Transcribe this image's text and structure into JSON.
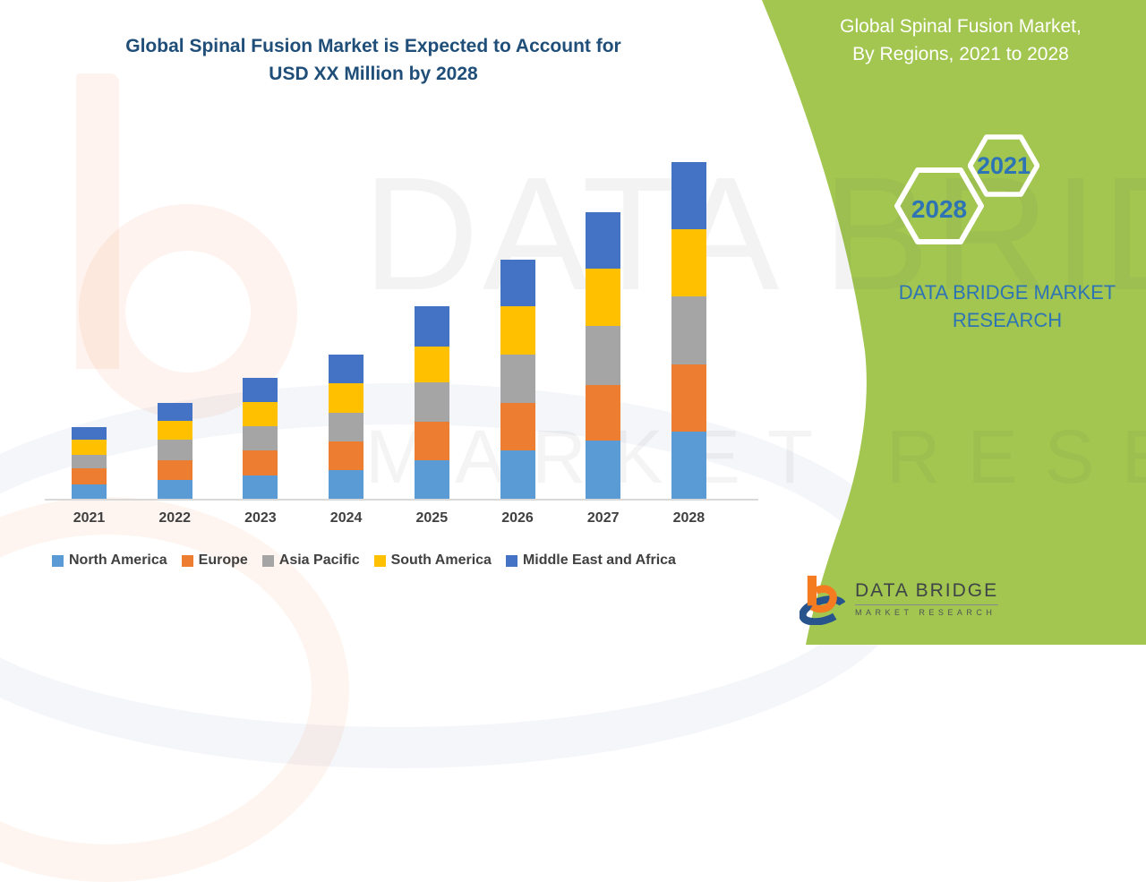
{
  "title": {
    "line1": "Global Spinal Fusion Market is Expected to Account for",
    "line2": "USD XX Million by 2028",
    "color": "#1F4E79"
  },
  "panel": {
    "bg_color": "#A2C64F",
    "heading_line1": "Global Spinal Fusion Market,",
    "heading_line2": "By Regions, 2021 to 2028",
    "heading_color": "#FFFFFF",
    "hexagon_large_label": "2028",
    "hexagon_small_label": "2021",
    "hexagon_text_color": "#2E74B5",
    "brand_line1": "DATA BRIDGE MARKET",
    "brand_line2": "RESEARCH",
    "brand_color": "#2E74B5"
  },
  "watermark": {
    "line1": "DATA BRIDGE",
    "line2": "MARKET RESEARCH"
  },
  "logo": {
    "name": "DATA BRIDGE",
    "tagline": "MARKET RESEARCH",
    "orange": "#F47B20",
    "blue": "#27548D"
  },
  "chart_data": {
    "type": "bar",
    "stacked": true,
    "title": "Global Spinal Fusion Market is Expected to Account for USD XX Million by 2028",
    "xlabel": "",
    "ylabel": "",
    "y_axis_visible": false,
    "grid": false,
    "legend_position": "bottom",
    "categories": [
      "2021",
      "2022",
      "2023",
      "2024",
      "2025",
      "2026",
      "2027",
      "2028"
    ],
    "values_unit": "relative height (value axis not labeled, values shown as USD XX Million)",
    "series": [
      {
        "name": "North America",
        "color": "#5B9BD5",
        "values": [
          16,
          21,
          26,
          32,
          43,
          54,
          65,
          75
        ]
      },
      {
        "name": "Europe",
        "color": "#ED7D31",
        "values": [
          18,
          22,
          28,
          32,
          43,
          53,
          62,
          75
        ]
      },
      {
        "name": "Asia Pacific",
        "color": "#A5A5A5",
        "values": [
          15,
          23,
          27,
          32,
          44,
          54,
          66,
          76
        ]
      },
      {
        "name": "South America",
        "color": "#FFC000",
        "values": [
          17,
          21,
          27,
          33,
          40,
          54,
          64,
          75
        ]
      },
      {
        "name": "Middle East and Africa",
        "color": "#4472C4",
        "values": [
          14,
          20,
          27,
          32,
          45,
          52,
          63,
          75
        ]
      }
    ],
    "totals": [
      80,
      107,
      135,
      161,
      215,
      267,
      320,
      375
    ]
  }
}
